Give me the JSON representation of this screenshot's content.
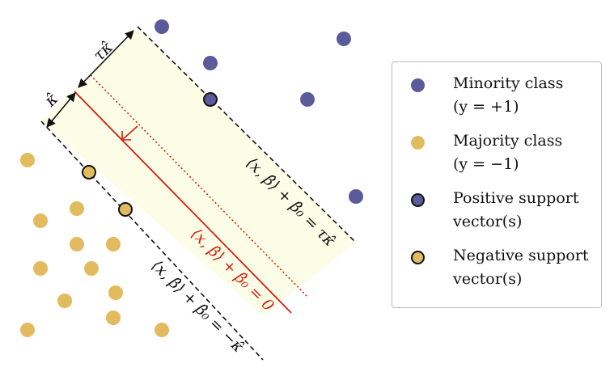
{
  "colors": {
    "minority": "#5b5b9c",
    "majority": "#e3bb5f",
    "margin_fill": "#fcfde6",
    "hyperplane": "#d21f0e",
    "dashed": "#111111"
  },
  "labels": {
    "tau_kappa": "τκ̂",
    "kappa": "κ̂",
    "upper_margin": "⟨x, β̂⟩ + β̂₀ = τκ̂",
    "hyperplane": "⟨x, β̂⟩ + β̂₀ = 0",
    "lower_margin": "⟨x, β̂⟩ + β̂₀ = −κ̂"
  },
  "legend": {
    "minority_line1": "Minority class",
    "minority_line2": "(y = +1)",
    "majority_line1": "Majority class",
    "majority_line2": "(y = −1)",
    "positive_line1": "Positive support",
    "positive_line2": "vector(s)",
    "negative_line1": "Negative support",
    "negative_line2": "vector(s)"
  }
}
